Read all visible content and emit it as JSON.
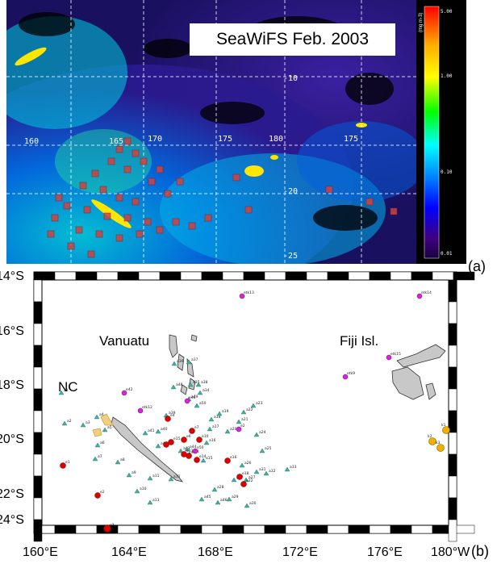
{
  "panel_a": {
    "title": "SeaWiFS Feb. 2003",
    "lon_labels": [
      "160",
      "165",
      "170",
      "175",
      "180",
      "175"
    ],
    "lat_labels": [
      "-10",
      "-20",
      "-25"
    ],
    "colorbar": {
      "unit": "(mg m-3)",
      "ticks": [
        "5.00",
        "1.00",
        "0.10",
        "0.01"
      ],
      "colors": [
        "#ff0000",
        "#ffaa00",
        "#ffff00",
        "#00ff00",
        "#00ffff",
        "#0080ff",
        "#0000ff",
        "#400080",
        "#1a0040"
      ]
    },
    "letter": "(a)"
  },
  "panel_b": {
    "letter": "(b)",
    "lat_labels": [
      "14°S",
      "16°S",
      "18°S",
      "20°S",
      "22°S",
      "24°S"
    ],
    "lon_labels": [
      "160°E",
      "164°E",
      "168°E",
      "172°E",
      "176°E",
      "180°W"
    ],
    "regions": [
      "Vanuatu",
      "Fiji Isl.",
      "NC"
    ],
    "stations": {
      "triangles": [
        "a1",
        "a2",
        "a3",
        "a4",
        "a5",
        "a6",
        "a7",
        "a8",
        "a9",
        "a10",
        "a11",
        "a12",
        "a13",
        "a14",
        "a15",
        "a16",
        "a17",
        "a18",
        "a19",
        "a20",
        "a21",
        "a22",
        "a23",
        "a24",
        "a25",
        "a26",
        "a27",
        "a28",
        "a29",
        "a30",
        "a31",
        "a32",
        "a33",
        "a34",
        "a35",
        "a36",
        "a37",
        "a38",
        "a39",
        "a40",
        "a41",
        "a42",
        "a43",
        "a44",
        "a45",
        "a46",
        "a47",
        "a48",
        "a49",
        "a50"
      ],
      "red": [
        "e1",
        "e2",
        "e3",
        "e4",
        "e5",
        "e6",
        "e7",
        "e8",
        "e10",
        "e13",
        "e14",
        "e15",
        "e16",
        "e18",
        "e22"
      ],
      "magenta": [
        "etk13",
        "etk14",
        "etk15",
        "etk9",
        "etk12",
        "e42",
        "e48",
        "e50",
        "e2"
      ],
      "orange": [
        "k1",
        "k2",
        "k3"
      ]
    }
  }
}
